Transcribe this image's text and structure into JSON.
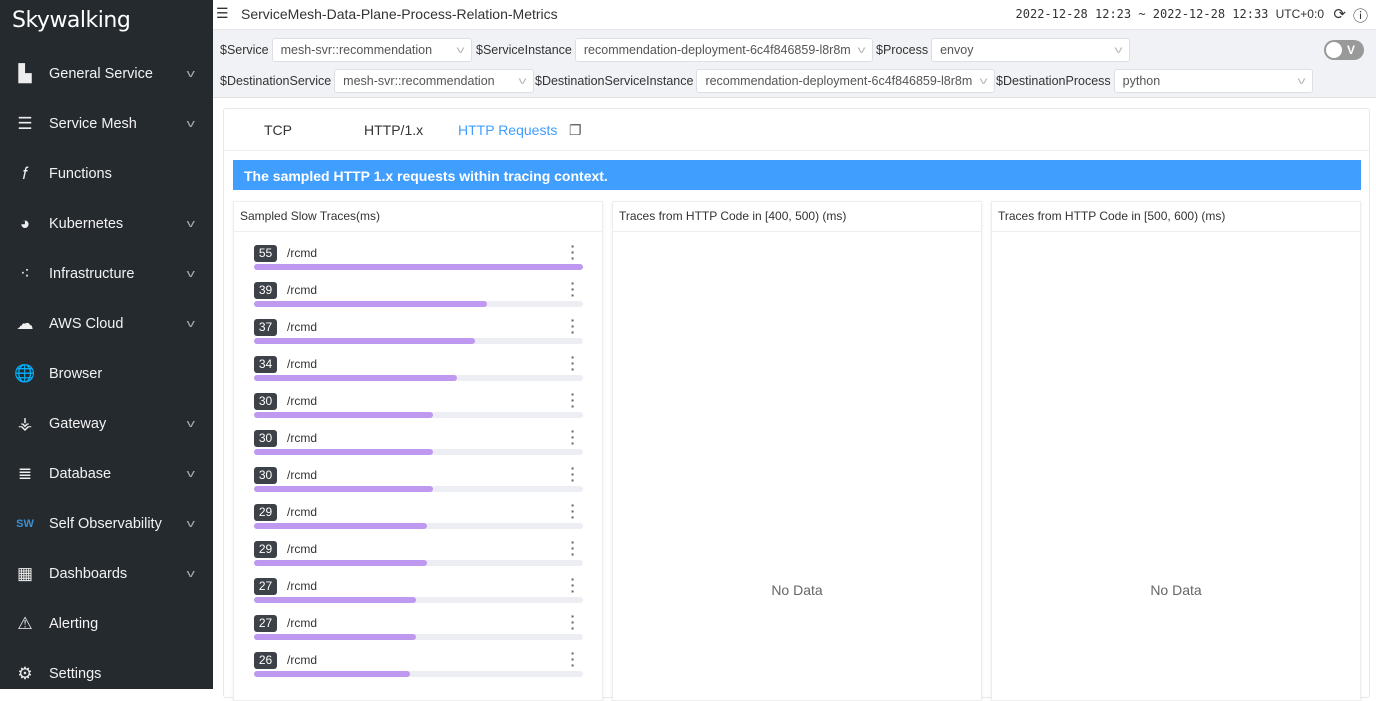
{
  "sidebar": {
    "logo": "Skywalking",
    "items": [
      {
        "label": "General Service",
        "icon": "chart-area-icon",
        "chevron": true
      },
      {
        "label": "Service Mesh",
        "icon": "layers-icon",
        "chevron": true
      },
      {
        "label": "Functions",
        "icon": "function-icon",
        "chevron": false
      },
      {
        "label": "Kubernetes",
        "icon": "pie-icon",
        "chevron": true
      },
      {
        "label": "Infrastructure",
        "icon": "nodes-icon",
        "chevron": true
      },
      {
        "label": "AWS Cloud",
        "icon": "cloud-icon",
        "chevron": true
      },
      {
        "label": "Browser",
        "icon": "globe-icon",
        "chevron": false
      },
      {
        "label": "Gateway",
        "icon": "gateway-icon",
        "chevron": true
      },
      {
        "label": "Database",
        "icon": "database-icon",
        "chevron": true
      },
      {
        "label": "Self Observability",
        "icon": "sw-icon",
        "chevron": true
      },
      {
        "label": "Dashboards",
        "icon": "dashboard-icon",
        "chevron": true
      },
      {
        "label": "Alerting",
        "icon": "alert-icon",
        "chevron": false
      },
      {
        "label": "Settings",
        "icon": "gear-icon",
        "chevron": false
      }
    ]
  },
  "header": {
    "title": "ServiceMesh-Data-Plane-Process-Relation-Metrics",
    "time_range": "2022-12-28 12:23 ~ 2022-12-28 12:33",
    "timezone": "UTC+0:0"
  },
  "filters": {
    "service": {
      "label": "$Service",
      "value": "mesh-svr::recommendation"
    },
    "service_instance": {
      "label": "$ServiceInstance",
      "value": "recommendation-deployment-6c4f846859-l8r8m"
    },
    "process": {
      "label": "$Process",
      "value": "envoy"
    },
    "dest_service": {
      "label": "$DestinationService",
      "value": "mesh-svr::recommendation"
    },
    "dest_service_instance": {
      "label": "$DestinationServiceInstance",
      "value": "recommendation-deployment-6c4f846859-l8r8m"
    },
    "dest_process": {
      "label": "$DestinationProcess",
      "value": "python"
    },
    "toggle_label": "V"
  },
  "tabs": [
    "TCP",
    "HTTP/1.x",
    "HTTP Requests"
  ],
  "active_tab": 2,
  "banner": "The sampled HTTP 1.x requests within tracing context.",
  "panels": {
    "slow": {
      "title": "Sampled Slow Traces(ms)",
      "max": 55,
      "traces": [
        {
          "value": 55,
          "endpoint": "/rcmd"
        },
        {
          "value": 39,
          "endpoint": "/rcmd"
        },
        {
          "value": 37,
          "endpoint": "/rcmd"
        },
        {
          "value": 34,
          "endpoint": "/rcmd"
        },
        {
          "value": 30,
          "endpoint": "/rcmd"
        },
        {
          "value": 30,
          "endpoint": "/rcmd"
        },
        {
          "value": 30,
          "endpoint": "/rcmd"
        },
        {
          "value": 29,
          "endpoint": "/rcmd"
        },
        {
          "value": 29,
          "endpoint": "/rcmd"
        },
        {
          "value": 27,
          "endpoint": "/rcmd"
        },
        {
          "value": 27,
          "endpoint": "/rcmd"
        },
        {
          "value": 26,
          "endpoint": "/rcmd"
        }
      ]
    },
    "http4xx": {
      "title": "Traces from HTTP Code in [400, 500) (ms)",
      "empty": "No Data"
    },
    "http5xx": {
      "title": "Traces from HTTP Code in [500, 600) (ms)",
      "empty": "No Data"
    }
  },
  "colors": {
    "sidebar": "#252a2f",
    "accent": "#409eff",
    "bar": "#bf99f0"
  }
}
